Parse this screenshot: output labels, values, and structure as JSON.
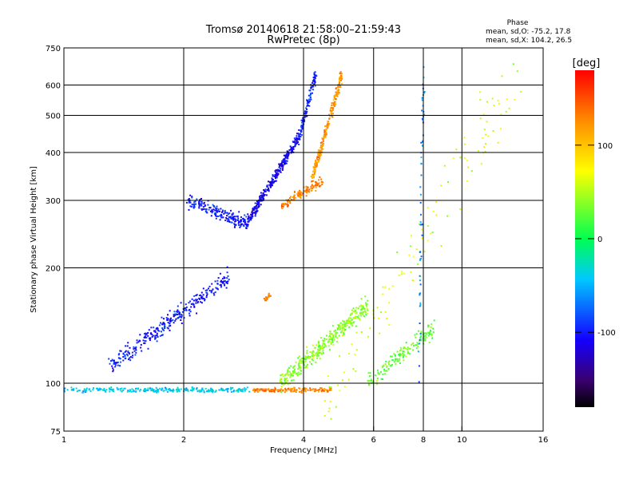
{
  "chart_data": {
    "type": "scatter",
    "title": "Tromsø 20140618 21:58:00–21:59:43",
    "subtitle": "RwPretec (8p)",
    "xlabel": "Frequency [MHz]",
    "ylabel": "Stationary phase Virtual Height [km]",
    "x_scale": "log",
    "y_scale": "log",
    "xlim": [
      1,
      16
    ],
    "ylim": [
      75,
      750
    ],
    "x_ticks": [
      1,
      2,
      4,
      6,
      8,
      10,
      16
    ],
    "y_ticks": [
      75,
      100,
      200,
      300,
      400,
      500,
      600,
      750
    ],
    "x_gridlines": [
      2,
      4,
      6,
      8,
      10
    ],
    "y_gridlines": [
      100,
      200,
      300,
      400,
      500,
      600
    ],
    "grid": true,
    "phase_stats": {
      "heading": "Phase",
      "line_o": "mean, sd,O: -75.2, 17.8",
      "line_x": "mean, sd,X: 104.2, 26.5"
    },
    "colorbar": {
      "label": "[deg]",
      "ticks": [
        "100",
        "0",
        "-100"
      ],
      "tick_values": [
        100,
        0,
        -100
      ],
      "range": [
        -180,
        180
      ]
    },
    "traces": [
      {
        "freq": [
          1.0,
          2.9
        ],
        "height": [
          96,
          96
        ],
        "phase": -40,
        "spread": 0.02,
        "count": 260
      },
      {
        "freq": [
          3.0,
          4.7
        ],
        "height": [
          96,
          96
        ],
        "phase": 130,
        "spread": 0.02,
        "count": 160
      },
      {
        "freq": [
          1.3,
          2.6
        ],
        "height": [
          110,
          190
        ],
        "phase": -100,
        "spread": 0.08,
        "count": 320
      },
      {
        "freq": [
          2.05,
          2.9
        ],
        "height": [
          300,
          260
        ],
        "phase": -100,
        "spread": 0.06,
        "count": 200
      },
      {
        "freq": [
          2.9,
          3.9
        ],
        "height": [
          265,
          440
        ],
        "phase": -110,
        "spread": 0.05,
        "count": 320
      },
      {
        "freq": [
          3.9,
          4.3
        ],
        "height": [
          440,
          640
        ],
        "phase": -95,
        "spread": 0.05,
        "count": 120
      },
      {
        "freq": [
          3.5,
          4.5
        ],
        "height": [
          290,
          340
        ],
        "phase": 130,
        "spread": 0.04,
        "count": 120
      },
      {
        "freq": [
          4.2,
          5.0
        ],
        "height": [
          340,
          640
        ],
        "phase": 120,
        "spread": 0.05,
        "count": 260
      },
      {
        "freq": [
          3.2,
          3.3
        ],
        "height": [
          165,
          170
        ],
        "phase": 130,
        "spread": 0.02,
        "count": 20
      },
      {
        "freq": [
          3.5,
          5.8
        ],
        "height": [
          100,
          160
        ],
        "phase": 40,
        "spread": 0.08,
        "count": 380
      },
      {
        "freq": [
          5.8,
          8.5
        ],
        "height": [
          100,
          140
        ],
        "phase": 30,
        "spread": 0.08,
        "count": 160
      },
      {
        "freq": [
          4.5,
          14.0
        ],
        "height": [
          90,
          640
        ],
        "phase": 60,
        "spread": 0.35,
        "count": 120
      },
      {
        "freq": [
          7.8,
          8.0
        ],
        "height": [
          110,
          640
        ],
        "phase": -60,
        "spread": 0.3,
        "count": 60
      }
    ]
  }
}
